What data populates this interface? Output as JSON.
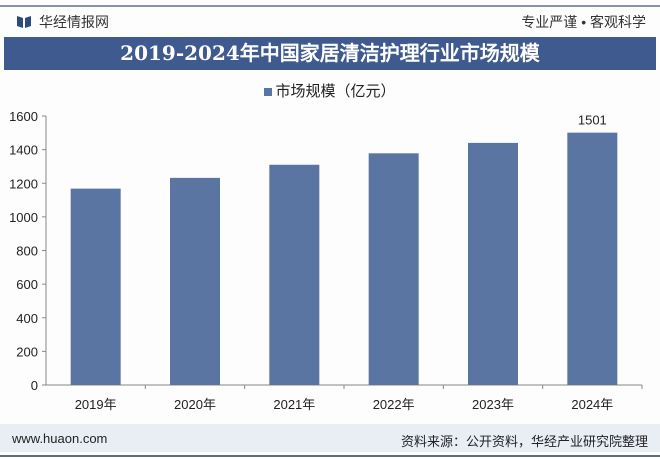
{
  "header": {
    "brand": "华经情报网",
    "slogan": "专业严谨 • 客观科学"
  },
  "footer": {
    "website": "www.huaon.com",
    "source": "资料来源：公开资料，华经产业研究院整理"
  },
  "chart_data": {
    "type": "bar",
    "title": "2019-2024年中国家居清洁护理行业市场规模",
    "legend": [
      "市场规模（亿元）"
    ],
    "legend_position": "top",
    "categories": [
      "2019年",
      "2020年",
      "2021年",
      "2022年",
      "2023年",
      "2024年"
    ],
    "series": [
      {
        "name": "市场规模（亿元）",
        "values": [
          1168,
          1232,
          1310,
          1378,
          1440,
          1501
        ],
        "color": "#5b75a3"
      }
    ],
    "data_labels": {
      "5": "1501"
    },
    "yticks": [
      0,
      200,
      400,
      600,
      800,
      1000,
      1200,
      1400,
      1600
    ],
    "ylim": [
      0,
      1600
    ],
    "grid": false
  }
}
